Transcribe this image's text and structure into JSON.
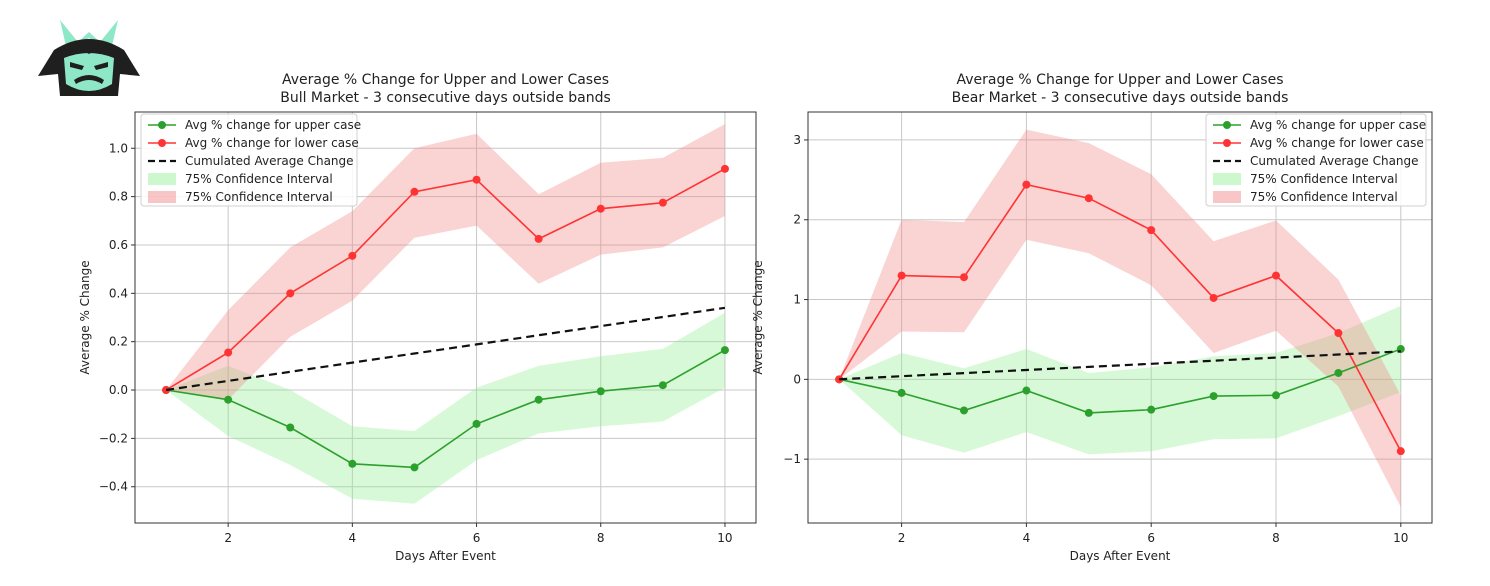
{
  "logo": {
    "icon": "samurai-helmet-logo",
    "colors": {
      "dark": "#1f1f1f",
      "accent": "#8ee8c8"
    }
  },
  "chart_data": [
    {
      "type": "line",
      "title": "Average % Change for Upper and Lower Cases",
      "subtitle": "Bull Market - 3 consecutive days outside bands",
      "xlabel": "Days After Event",
      "ylabel": "Average % Change",
      "xlim": [
        0.5,
        10.5
      ],
      "ylim": [
        -0.55,
        1.15
      ],
      "xticks": [
        2,
        4,
        6,
        8,
        10
      ],
      "xtick_labels": [
        "2",
        "4",
        "6",
        "8",
        "10"
      ],
      "yticks": [
        -0.4,
        -0.2,
        0.0,
        0.2,
        0.4,
        0.6,
        0.8,
        1.0
      ],
      "ytick_labels": [
        "−0.4",
        "−0.2",
        "0.0",
        "0.2",
        "0.4",
        "0.6",
        "0.8",
        "1.0"
      ],
      "grid": true,
      "legend_position": "top-left",
      "x": [
        1,
        2,
        3,
        4,
        5,
        6,
        7,
        8,
        9,
        10
      ],
      "series": [
        {
          "name": "Avg % change for upper case",
          "color": "#2ca02c",
          "style": "line-marker",
          "values": [
            0.0,
            -0.04,
            -0.155,
            -0.305,
            -0.32,
            -0.14,
            -0.04,
            -0.005,
            0.02,
            0.165
          ]
        },
        {
          "name": "Avg % change for lower case",
          "color": "#ff3333",
          "style": "line-marker",
          "values": [
            0.0,
            0.155,
            0.4,
            0.555,
            0.82,
            0.87,
            0.625,
            0.75,
            0.775,
            0.915
          ]
        },
        {
          "name": "Cumulated Average Change",
          "color": "#111111",
          "style": "dashed",
          "values": [
            0.0,
            0.0378,
            0.0756,
            0.1133,
            0.1511,
            0.1889,
            0.2267,
            0.2644,
            0.3022,
            0.34
          ]
        }
      ],
      "bands": [
        {
          "name": "75% Confidence Interval",
          "color": "#90ee90",
          "opacity": 0.35,
          "upper": [
            0.0,
            0.1,
            0.0,
            -0.15,
            -0.17,
            0.01,
            0.1,
            0.14,
            0.17,
            0.32
          ],
          "lower": [
            0.0,
            -0.19,
            -0.31,
            -0.45,
            -0.47,
            -0.29,
            -0.18,
            -0.15,
            -0.13,
            0.01
          ]
        },
        {
          "name": "75% Confidence Interval",
          "color": "#f08080",
          "opacity": 0.35,
          "upper": [
            0.0,
            0.33,
            0.59,
            0.74,
            1.0,
            1.06,
            0.81,
            0.94,
            0.96,
            1.1
          ],
          "lower": [
            0.0,
            -0.04,
            0.22,
            0.37,
            0.63,
            0.68,
            0.44,
            0.56,
            0.59,
            0.72
          ]
        }
      ]
    },
    {
      "type": "line",
      "title": "Average % Change for Upper and Lower Cases",
      "subtitle": "Bear Market - 3 consecutive days outside bands",
      "xlabel": "Days After Event",
      "ylabel": "Average % Change",
      "xlim": [
        0.5,
        10.5
      ],
      "ylim": [
        -1.8,
        3.35
      ],
      "xticks": [
        2,
        4,
        6,
        8,
        10
      ],
      "xtick_labels": [
        "2",
        "4",
        "6",
        "8",
        "10"
      ],
      "yticks": [
        -1,
        0,
        1,
        2,
        3
      ],
      "ytick_labels": [
        "−1",
        "0",
        "1",
        "2",
        "3"
      ],
      "grid": true,
      "legend_position": "top-right",
      "x": [
        1,
        2,
        3,
        4,
        5,
        6,
        7,
        8,
        9,
        10
      ],
      "series": [
        {
          "name": "Avg % change for upper case",
          "color": "#2ca02c",
          "style": "line-marker",
          "values": [
            0.0,
            -0.17,
            -0.39,
            -0.14,
            -0.42,
            -0.38,
            -0.21,
            -0.2,
            0.08,
            0.38
          ]
        },
        {
          "name": "Avg % change for lower case",
          "color": "#ff3333",
          "style": "line-marker",
          "values": [
            0.0,
            1.3,
            1.28,
            2.44,
            2.27,
            1.87,
            1.02,
            1.3,
            0.58,
            -0.9
          ]
        },
        {
          "name": "Cumulated Average Change",
          "color": "#111111",
          "style": "dashed",
          "values": [
            0.0,
            0.0389,
            0.0778,
            0.1167,
            0.1556,
            0.1944,
            0.2333,
            0.2722,
            0.3111,
            0.35
          ]
        }
      ],
      "bands": [
        {
          "name": "75% Confidence Interval",
          "color": "#90ee90",
          "opacity": 0.35,
          "upper": [
            0.0,
            0.33,
            0.14,
            0.38,
            0.08,
            0.15,
            0.29,
            0.33,
            0.58,
            0.92
          ],
          "lower": [
            0.0,
            -0.7,
            -0.92,
            -0.66,
            -0.94,
            -0.9,
            -0.75,
            -0.74,
            -0.46,
            -0.16
          ]
        },
        {
          "name": "75% Confidence Interval",
          "color": "#f08080",
          "opacity": 0.35,
          "upper": [
            0.0,
            2.0,
            1.97,
            3.13,
            2.96,
            2.57,
            1.73,
            1.99,
            1.25,
            -0.2
          ],
          "lower": [
            0.0,
            0.6,
            0.59,
            1.75,
            1.58,
            1.18,
            0.33,
            0.61,
            -0.09,
            -1.6
          ]
        }
      ]
    }
  ]
}
